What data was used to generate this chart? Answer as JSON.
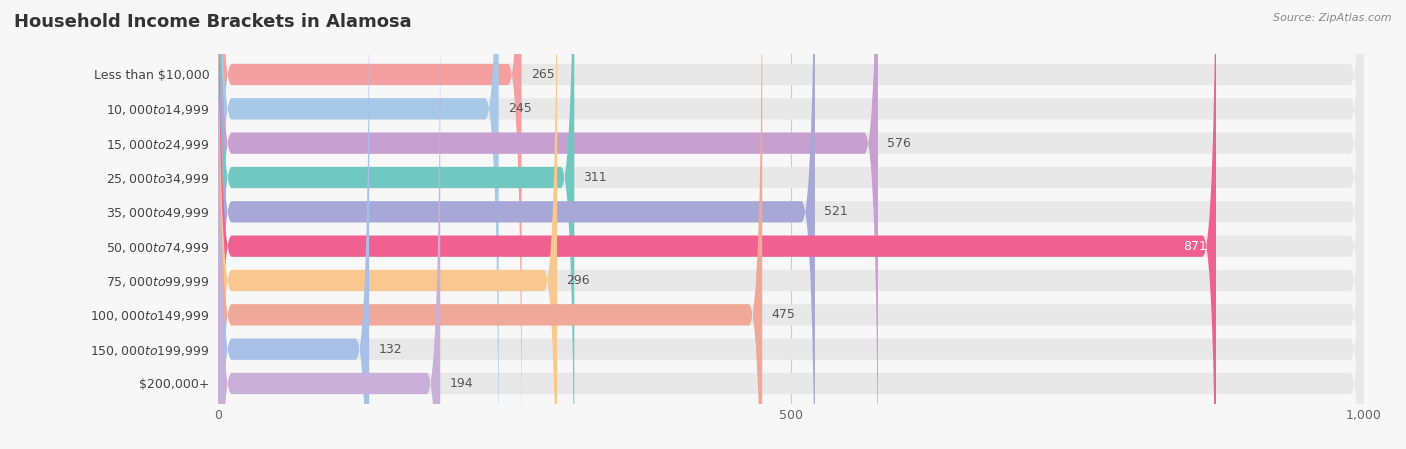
{
  "title": "Household Income Brackets in Alamosa",
  "source": "Source: ZipAtlas.com",
  "categories": [
    "Less than $10,000",
    "$10,000 to $14,999",
    "$15,000 to $24,999",
    "$25,000 to $34,999",
    "$35,000 to $49,999",
    "$50,000 to $74,999",
    "$75,000 to $99,999",
    "$100,000 to $149,999",
    "$150,000 to $199,999",
    "$200,000+"
  ],
  "values": [
    265,
    245,
    576,
    311,
    521,
    871,
    296,
    475,
    132,
    194
  ],
  "bar_colors": [
    "#F4A0A0",
    "#A8C8E8",
    "#C8A0D0",
    "#70C8C0",
    "#A8A8D8",
    "#F06090",
    "#F8C890",
    "#F0A898",
    "#A8C0E8",
    "#C8B0D8"
  ],
  "xlim": [
    0,
    1000
  ],
  "xticks": [
    0,
    500,
    1000
  ],
  "background_color": "#f7f7f7",
  "bar_background_color": "#e8e8e8",
  "title_fontsize": 13,
  "label_fontsize": 9,
  "value_fontsize": 9
}
